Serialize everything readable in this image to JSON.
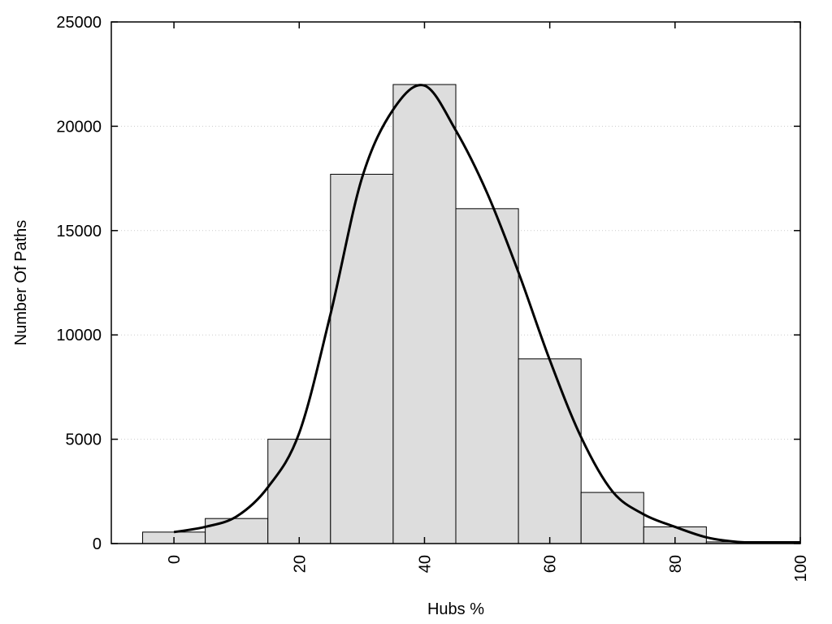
{
  "chart_data": {
    "type": "bar",
    "title": "",
    "xlabel": "Hubs %",
    "ylabel": "Number Of Paths",
    "xlim": [
      -10,
      100
    ],
    "ylim": [
      0,
      25000
    ],
    "x_ticks": [
      0,
      20,
      40,
      60,
      80,
      100
    ],
    "y_ticks": [
      0,
      5000,
      10000,
      15000,
      20000,
      25000
    ],
    "grid": "horizontal-dotted",
    "legend": "none",
    "bin_width": 10,
    "bins": [
      {
        "center": 0,
        "value": 550
      },
      {
        "center": 10,
        "value": 1200
      },
      {
        "center": 20,
        "value": 5000
      },
      {
        "center": 30,
        "value": 17700
      },
      {
        "center": 40,
        "value": 22000
      },
      {
        "center": 50,
        "value": 16050
      },
      {
        "center": 60,
        "value": 8850
      },
      {
        "center": 70,
        "value": 2450
      },
      {
        "center": 80,
        "value": 800
      },
      {
        "center": 90,
        "value": 80
      },
      {
        "center": 100,
        "value": 40
      }
    ],
    "curve": {
      "x": [
        0,
        5,
        10,
        15,
        20,
        25,
        30,
        35,
        40,
        45,
        50,
        55,
        60,
        65,
        70,
        75,
        80,
        85,
        90,
        95,
        100
      ],
      "y": [
        550,
        800,
        1300,
        2700,
        5300,
        11000,
        17500,
        20800,
        21950,
        19800,
        16800,
        13000,
        8800,
        5100,
        2500,
        1400,
        800,
        300,
        80,
        60,
        60
      ]
    },
    "colors": {
      "bar_fill": "#dddddd",
      "bar_stroke": "#000000",
      "curve": "#000000",
      "grid": "#cccccc"
    }
  }
}
